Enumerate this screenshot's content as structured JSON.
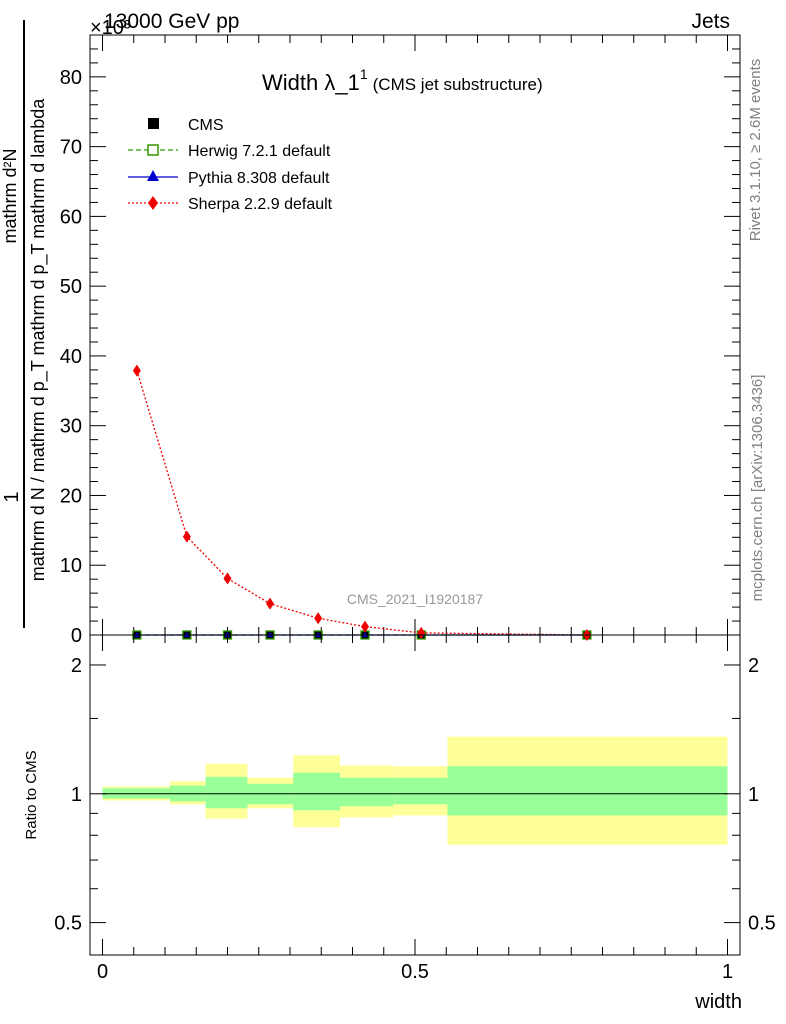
{
  "header": {
    "left": "13000 GeV pp",
    "right": "Jets",
    "exponent": "×10³"
  },
  "title": {
    "main": "Width λ_1",
    "superscript": "1",
    "sub": "(CMS jet substructure)"
  },
  "side_labels": {
    "rivet": "Rivet 3.1.10, ≥ 2.6M events",
    "mcplots": "mcplots.cern.ch [arXiv:1306.3436]"
  },
  "watermark": "CMS_2021_I1920187",
  "colors": {
    "cms": "#000000",
    "herwig": "#339900",
    "pythia": "#0000cc",
    "sherpa": "#ee0000",
    "band_inner": "#99ff99",
    "band_outer": "#ffff99"
  },
  "chart_data": [
    {
      "type": "scatter",
      "panel": "main",
      "ylabel_numerator": "1",
      "ylabel_denominator": "mathrm d N / mathrm d p_T mathrm d p_T mathrm d lambda",
      "ylabel_top": "mathrm d²N",
      "ylim": [
        0,
        86000
      ],
      "xlim": [
        -0.02,
        1.02
      ],
      "yticks": [
        "0",
        "10",
        "20",
        "30",
        "40",
        "50",
        "60",
        "70",
        "80"
      ],
      "ytick_values": [
        0,
        10000,
        20000,
        30000,
        40000,
        50000,
        60000,
        70000,
        80000
      ],
      "legend_position": "top-left",
      "series": [
        {
          "name": "CMS",
          "marker": "square-filled",
          "x": [
            0.055,
            0.135,
            0.2,
            0.268,
            0.345,
            0.42,
            0.51,
            0.775
          ],
          "y": [
            0,
            0,
            0,
            0,
            0,
            0,
            0,
            0
          ]
        },
        {
          "name": "Herwig 7.2.1 default",
          "marker": "square-open",
          "line": "dashed",
          "x": [
            0.055,
            0.135,
            0.2,
            0.268,
            0.345,
            0.42,
            0.51,
            0.775
          ],
          "y": [
            0,
            0,
            0,
            0,
            0,
            0,
            0,
            0
          ]
        },
        {
          "name": "Pythia 8.308 default",
          "marker": "triangle",
          "line": "solid",
          "x": [
            0.055,
            0.135,
            0.2,
            0.268,
            0.345,
            0.42,
            0.51,
            0.775
          ],
          "y": [
            0,
            0,
            0,
            0,
            0,
            0,
            0,
            0
          ]
        },
        {
          "name": "Sherpa 2.2.9 default",
          "marker": "diamond",
          "line": "dotted",
          "x": [
            0.055,
            0.135,
            0.2,
            0.268,
            0.345,
            0.42,
            0.51,
            0.775
          ],
          "y": [
            37900,
            14100,
            8100,
            4500,
            2400,
            1200,
            300,
            0
          ]
        }
      ]
    },
    {
      "type": "area",
      "panel": "ratio",
      "ylabel": "Ratio to CMS",
      "xlabel": "width",
      "scale": "log",
      "ylim": [
        0.42,
        2.35
      ],
      "xlim": [
        -0.02,
        1.02
      ],
      "yticks": [
        "0.5",
        "1",
        "2"
      ],
      "ytick_values": [
        0.5,
        1,
        2
      ],
      "xticks": [
        "0",
        "0.5",
        "1"
      ],
      "xtick_values": [
        0,
        0.5,
        1
      ],
      "bins": [
        {
          "x_low": 0.0,
          "x_high": 0.108,
          "inner": [
            0.975,
            1.03
          ],
          "outer": [
            0.965,
            1.04
          ]
        },
        {
          "x_low": 0.108,
          "x_high": 0.165,
          "inner": [
            0.96,
            1.045
          ],
          "outer": [
            0.945,
            1.07
          ]
        },
        {
          "x_low": 0.165,
          "x_high": 0.232,
          "inner": [
            0.925,
            1.095
          ],
          "outer": [
            0.875,
            1.175
          ]
        },
        {
          "x_low": 0.232,
          "x_high": 0.305,
          "inner": [
            0.945,
            1.055
          ],
          "outer": [
            0.925,
            1.09
          ]
        },
        {
          "x_low": 0.305,
          "x_high": 0.38,
          "inner": [
            0.915,
            1.12
          ],
          "outer": [
            0.835,
            1.23
          ]
        },
        {
          "x_low": 0.38,
          "x_high": 0.465,
          "inner": [
            0.935,
            1.09
          ],
          "outer": [
            0.88,
            1.165
          ]
        },
        {
          "x_low": 0.465,
          "x_high": 0.552,
          "inner": [
            0.945,
            1.09
          ],
          "outer": [
            0.89,
            1.16
          ]
        },
        {
          "x_low": 0.552,
          "x_high": 1.0,
          "inner": [
            0.89,
            1.16
          ],
          "outer": [
            0.76,
            1.36
          ]
        }
      ],
      "reference_line": 1.0
    }
  ]
}
